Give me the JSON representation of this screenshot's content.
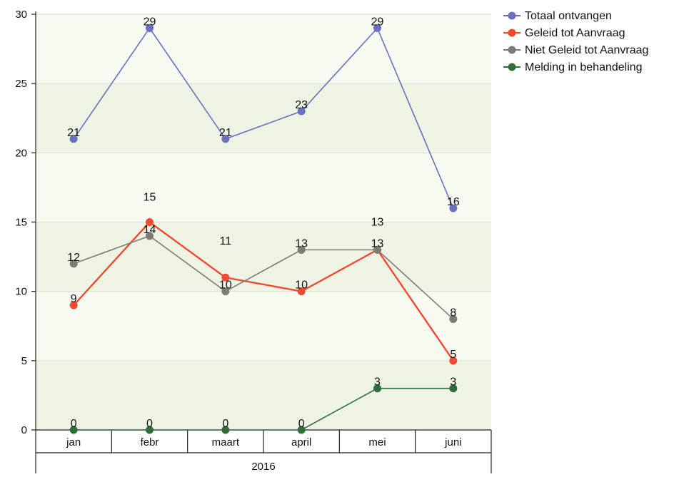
{
  "chart_data": {
    "type": "line",
    "categories": [
      "jan",
      "febr",
      "maart",
      "april",
      "mei",
      "juni"
    ],
    "group_label": "2016",
    "y_ticks": [
      "0",
      "5",
      "10",
      "15",
      "20",
      "25",
      "30"
    ],
    "ylim": [
      0,
      30
    ],
    "grid": true,
    "legend_position": "top-right",
    "series": [
      {
        "name": "Totaal ontvangen",
        "color": "#6b6fc0",
        "values": [
          21,
          29,
          21,
          23,
          29,
          16
        ]
      },
      {
        "name": "Geleid tot Aanvraag",
        "color": "#f04a32",
        "values": [
          9,
          15,
          11,
          10,
          13,
          5
        ]
      },
      {
        "name": "Niet Geleid tot Aanvraag",
        "color": "#7f7a74",
        "values": [
          12,
          14,
          10,
          13,
          13,
          8
        ]
      },
      {
        "name": "Melding in behandeling",
        "color": "#2f6e3a",
        "values": [
          0,
          0,
          0,
          0,
          3,
          3
        ]
      }
    ]
  }
}
